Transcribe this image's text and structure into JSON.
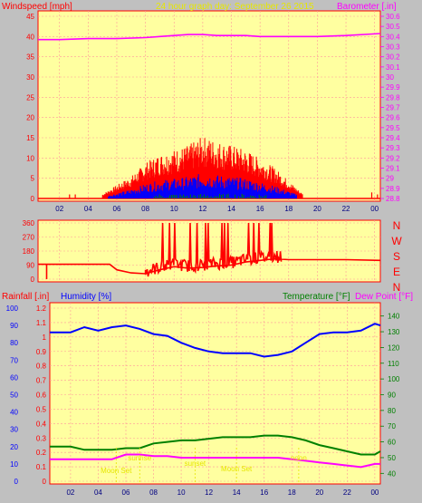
{
  "header": {
    "left_label": "Windspeed [mph]",
    "center_label": "24 hour graph day:  September 26 2015",
    "right_label": "Barometer [.in]"
  },
  "colors": {
    "background": "#c0c0c0",
    "plot_bg": "#ffffa0",
    "grid": "#ff9999",
    "axis": "#ff0000",
    "wind": "#ff0000",
    "gust_blue": "#0000ff",
    "gust_green": "#008000",
    "baro": "#ff00ff",
    "humidity": "#0000ff",
    "temp": "#008000",
    "dew": "#ff00ff",
    "annot": "#e6e600"
  },
  "chart_data": [
    {
      "id": "wind",
      "type": "line",
      "title": "",
      "xlabel": "",
      "left_label": "Windspeed [mph]",
      "right_label": "Barometer [.in]",
      "x_ticks": [
        "02",
        "04",
        "06",
        "08",
        "10",
        "12",
        "14",
        "16",
        "18",
        "20",
        "22",
        "00"
      ],
      "y_left_ticks": [
        "0",
        "5",
        "10",
        "15",
        "20",
        "25",
        "30",
        "35",
        "40",
        "45"
      ],
      "y_left_range": [
        0,
        45
      ],
      "y_right_ticks": [
        "28.8",
        "28.9",
        "29",
        "29.1",
        "29.2",
        "29.3",
        "29.4",
        "29.5",
        "29.6",
        "29.7",
        "29.8",
        "29.9",
        "30",
        "30.1",
        "30.2",
        "30.3",
        "30.4",
        "30.5",
        "30.6"
      ],
      "y_right_range": [
        28.8,
        30.6
      ],
      "x_range": [
        0.5,
        24.4
      ],
      "series": [
        {
          "role": "barometer",
          "x": [
            0.5,
            2,
            4,
            6,
            8,
            9,
            10,
            11,
            12,
            13,
            14,
            15,
            16,
            18,
            20,
            22,
            24.4
          ],
          "y": [
            30.37,
            30.37,
            30.38,
            30.38,
            30.39,
            30.4,
            30.41,
            30.42,
            30.42,
            30.41,
            30.41,
            30.41,
            30.4,
            30.4,
            30.4,
            30.41,
            30.43
          ]
        },
        {
          "role": "wind_envelope",
          "x": [
            5,
            6,
            7,
            8,
            9,
            10,
            11,
            12,
            13,
            14,
            15,
            16,
            17,
            18,
            19
          ],
          "y": [
            1,
            3,
            5,
            8,
            10,
            11,
            12,
            14,
            13,
            12,
            11,
            9,
            7,
            4,
            1
          ]
        }
      ]
    },
    {
      "id": "direction",
      "type": "line",
      "title": "",
      "y_left_ticks": [
        "0",
        "90",
        "180",
        "270",
        "360"
      ],
      "y_left_range": [
        0,
        360
      ],
      "y_right_ticks": [
        "N",
        "W",
        "S",
        "E",
        "N"
      ],
      "x_range": [
        0.5,
        24.4
      ],
      "series": [
        {
          "role": "direction",
          "x": [
            0.5,
            1,
            1.2,
            5.5,
            6,
            7,
            8,
            9,
            10,
            11,
            12,
            13,
            14,
            15,
            16,
            17,
            18,
            19,
            20,
            22,
            24.4
          ],
          "y": [
            95,
            95,
            95,
            95,
            60,
            40,
            35,
            60,
            80,
            70,
            75,
            85,
            90,
            110,
            120,
            130,
            125,
            125,
            125,
            125,
            120
          ]
        }
      ]
    },
    {
      "id": "rain_temp",
      "type": "line",
      "title": "",
      "xlabel": "",
      "left_label_1": "Rainfall [.in]",
      "left_label_2": "Humidity [%]",
      "right_label_1": "Temperature [°F]",
      "right_label_2": "Dew Point [°F]",
      "x_ticks": [
        "02",
        "04",
        "06",
        "08",
        "10",
        "12",
        "14",
        "16",
        "18",
        "20",
        "22",
        "00"
      ],
      "y_rain_ticks": [
        "0",
        "0.1",
        "0.2",
        "0.3",
        "0.4",
        "0.5",
        "0.6",
        "0.7",
        "0.8",
        "0.9",
        "1",
        "1.1",
        "1.2"
      ],
      "y_rain_range": [
        0,
        1.2
      ],
      "y_hum_ticks": [
        "0",
        "10",
        "20",
        "30",
        "40",
        "50",
        "60",
        "70",
        "80",
        "90",
        "100"
      ],
      "y_hum_range": [
        0,
        100
      ],
      "y_temp_ticks": [
        "40",
        "50",
        "60",
        "70",
        "80",
        "90",
        "100",
        "110",
        "120",
        "130",
        "140"
      ],
      "y_temp_range": [
        35,
        145
      ],
      "x_range": [
        0.5,
        24.4
      ],
      "series": [
        {
          "role": "humidity",
          "x": [
            0.5,
            1,
            2,
            3,
            4,
            5,
            6,
            7,
            8,
            9,
            10,
            11,
            12,
            13,
            14,
            15,
            16,
            17,
            18,
            19,
            20,
            21,
            22,
            23,
            24,
            24.4
          ],
          "y": [
            86,
            86,
            86,
            89,
            87,
            89,
            90,
            88,
            85,
            84,
            80,
            77,
            75,
            74,
            74,
            74,
            72,
            73,
            75,
            80,
            85,
            86,
            86,
            87,
            91,
            90
          ]
        },
        {
          "role": "temperature",
          "x": [
            0.5,
            2,
            3,
            4,
            5,
            6,
            7,
            8,
            9,
            10,
            11,
            12,
            13,
            14,
            15,
            16,
            17,
            18,
            19,
            20,
            21,
            22,
            23,
            24,
            24.4
          ],
          "y": [
            57,
            57,
            55,
            55,
            55,
            56,
            56,
            59,
            60,
            61,
            61,
            62,
            63,
            63,
            63,
            64,
            64,
            63,
            61,
            58,
            56,
            54,
            52,
            52,
            54
          ]
        },
        {
          "role": "dew_point",
          "x": [
            0.5,
            2,
            4,
            5,
            6,
            7,
            8,
            9,
            10,
            11,
            12,
            13,
            14,
            15,
            16,
            17,
            18,
            19,
            20,
            21,
            22,
            23,
            24,
            24.4
          ],
          "y": [
            49,
            49,
            49,
            49,
            52,
            52,
            51,
            51,
            50,
            50,
            50,
            50,
            50,
            50,
            50,
            50,
            49,
            48,
            47,
            46,
            45,
            44,
            46,
            46
          ]
        }
      ],
      "annotations": [
        "Moon Set",
        "sunrise",
        "sunset",
        "Moon Set",
        "noon"
      ]
    }
  ]
}
